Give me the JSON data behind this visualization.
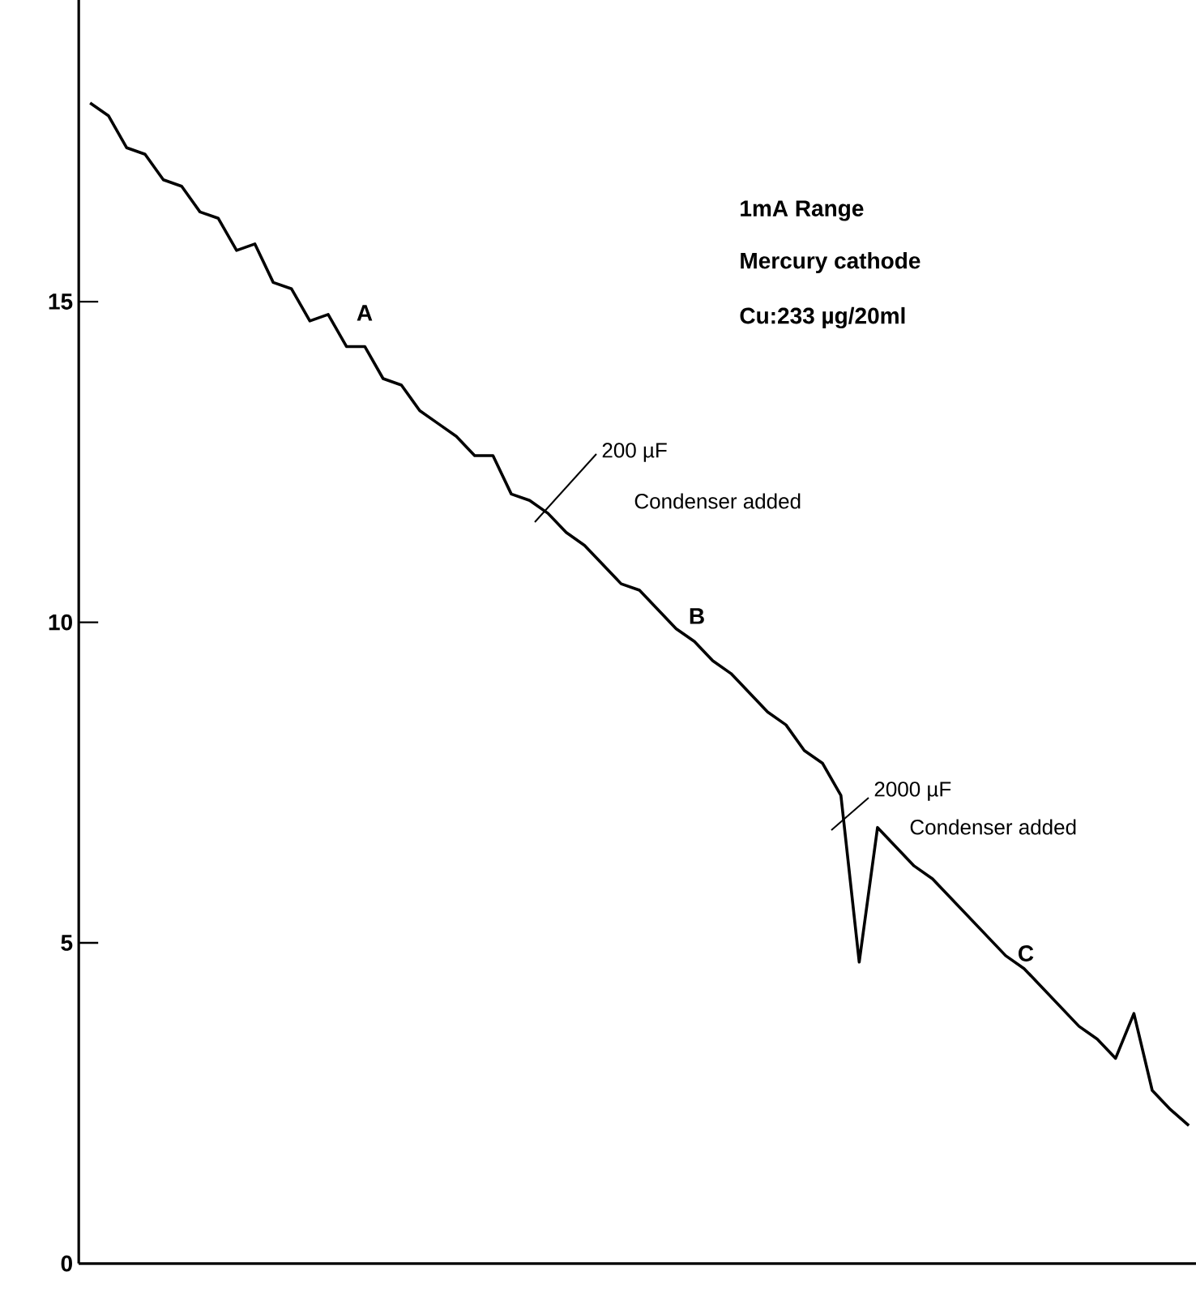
{
  "chart_data": {
    "type": "line",
    "categories": [
      null,
      null,
      null,
      null,
      null,
      null,
      null,
      null,
      null,
      null,
      null,
      null,
      null,
      null,
      null,
      null,
      null,
      null,
      null,
      null,
      null,
      null,
      null,
      null,
      null,
      null,
      null,
      null,
      null,
      null,
      null,
      null,
      null,
      null,
      null,
      null,
      null,
      null,
      null,
      null,
      null,
      null,
      null,
      null,
      null,
      null,
      null,
      null,
      null,
      null,
      null,
      null,
      null,
      null,
      null,
      null,
      null,
      null,
      null,
      null,
      null
    ],
    "series": [
      {
        "color": "#000000",
        "values": [
          18.1,
          17.9,
          17.4,
          17.3,
          16.9,
          16.8,
          16.4,
          16.3,
          15.8,
          15.9,
          15.3,
          15.2,
          14.7,
          14.8,
          14.3,
          14.3,
          13.8,
          13.7,
          13.3,
          13.1,
          12.9,
          12.6,
          12.6,
          12.0,
          11.9,
          11.7,
          11.4,
          11.2,
          10.9,
          10.6,
          10.5,
          10.2,
          9.9,
          9.7,
          9.4,
          9.2,
          8.9,
          8.6,
          8.4,
          8.0,
          7.8,
          7.3,
          4.7,
          6.8,
          6.5,
          6.2,
          6.0,
          5.7,
          5.4,
          5.1,
          4.8,
          4.6,
          4.3,
          4.0,
          3.7,
          3.5,
          3.2,
          3.9,
          2.7,
          2.4,
          2.15
        ]
      }
    ],
    "ylim": [
      0,
      19.9
    ],
    "yticks": [
      0,
      5,
      10,
      15
    ],
    "tick_labels": "y",
    "annotations": [
      "1mA Range",
      "Mercury cathode",
      "Cu:233 µg/20ml",
      "A",
      "200 µF",
      "Condenser added",
      "B",
      "2000 µF",
      "Condenser added",
      "C"
    ]
  }
}
